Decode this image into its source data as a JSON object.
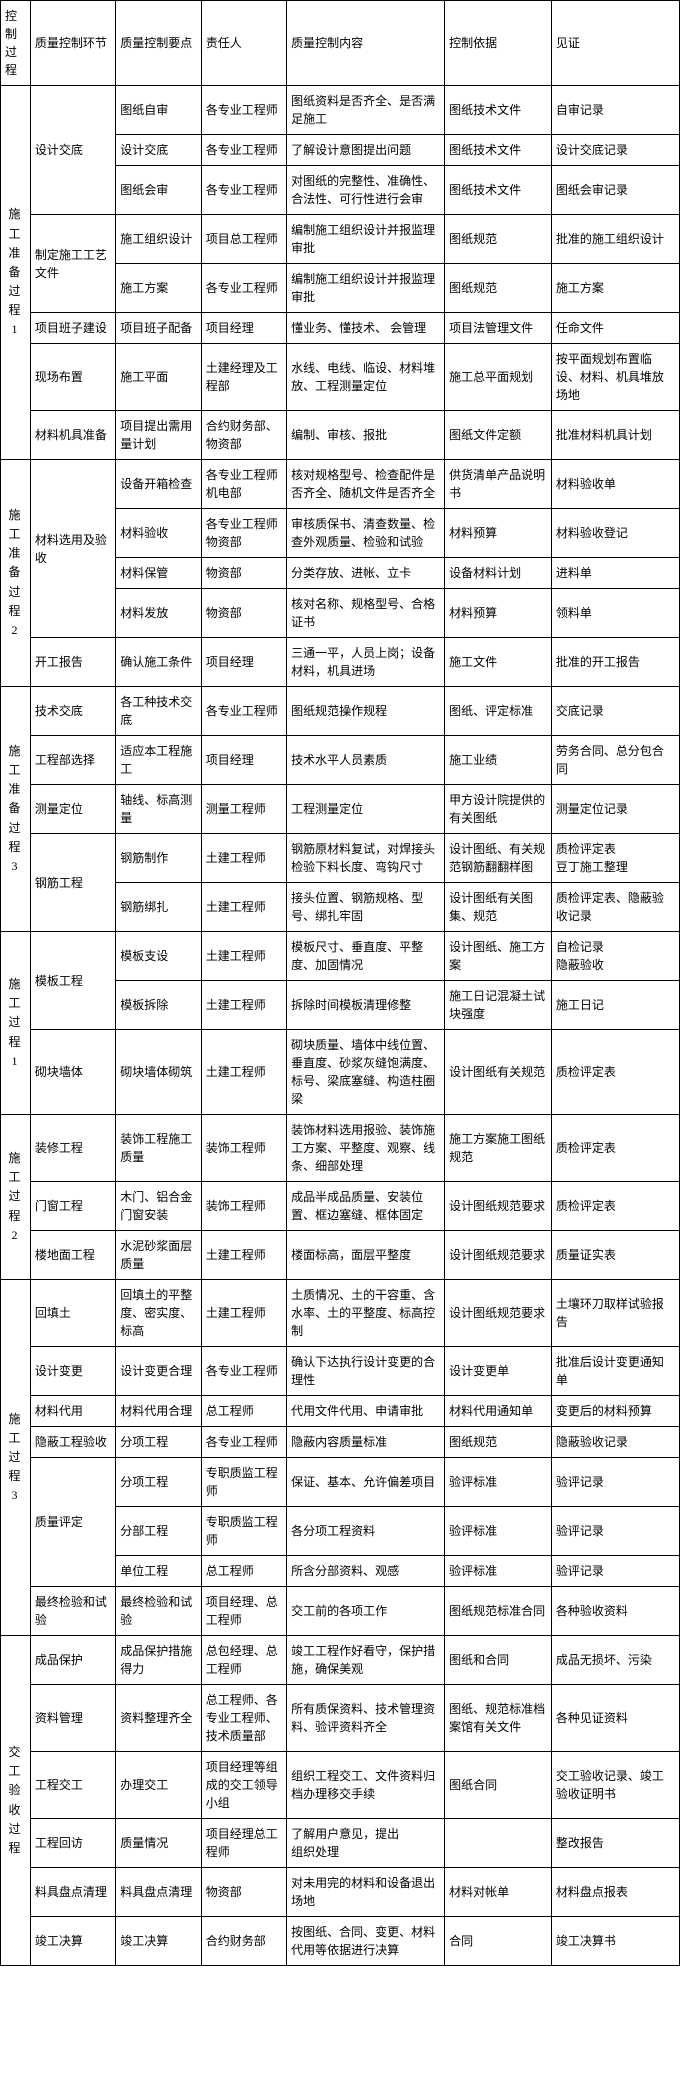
{
  "headers": [
    "控制过程",
    "质量控制环节",
    "质量控制要点",
    "责任人",
    "质量控制内容",
    "控制依据",
    "见证"
  ],
  "phases": [
    {
      "name": "施工准备过程1",
      "groups": [
        {
          "link": "设计交底",
          "rows": [
            {
              "point": "图纸自审",
              "resp": "各专业工程师",
              "content": "图纸资料是否齐全、是否满足施工",
              "basis": "图纸技术文件",
              "evidence": "自审记录"
            },
            {
              "point": "设计交底",
              "resp": "各专业工程师",
              "content": "了解设计意图提出问题",
              "basis": "图纸技术文件",
              "evidence": "设计交底记录"
            },
            {
              "point": "图纸会审",
              "resp": "各专业工程师",
              "content": "对图纸的完整性、准确性、合法性、可行性进行会审",
              "basis": "图纸技术文件",
              "evidence": "图纸会审记录"
            }
          ]
        },
        {
          "link": "制定施工工艺文件",
          "rows": [
            {
              "point": "施工组织设计",
              "resp": "项目总工程师",
              "content": "编制施工组织设计并报监理审批",
              "basis": "图纸规范",
              "evidence": "批准的施工组织设计"
            },
            {
              "point": "施工方案",
              "resp": "各专业工程师",
              "content": "编制施工组织设计并报监理审批",
              "basis": "图纸规范",
              "evidence": "施工方案"
            }
          ]
        },
        {
          "link": "项目班子建设",
          "rows": [
            {
              "point": "项目班子配备",
              "resp": "项目经理",
              "content": "懂业务、懂技术、 会管理",
              "basis": "项目法管理文件",
              "evidence": "任命文件"
            }
          ]
        },
        {
          "link": "现场布置",
          "rows": [
            {
              "point": "施工平面",
              "resp": "土建经理及工程部",
              "content": "水线、电线、临设、材料堆放、工程测量定位",
              "basis": "施工总平面规划",
              "evidence": "按平面规划布置临设、材料、机具堆放场地"
            }
          ]
        },
        {
          "link": "材料机具准备",
          "rows": [
            {
              "point": "项目提出需用量计划",
              "resp": "合约财务部、物资部",
              "content": "编制、审核、报批",
              "basis": "图纸文件定额",
              "evidence": "批准材料机具计划"
            }
          ]
        }
      ]
    },
    {
      "name": "施工准备过程2",
      "groups": [
        {
          "link": "材料选用及验收",
          "rows": [
            {
              "point": "设备开箱检查",
              "resp": "各专业工程师机电部",
              "content": "核对规格型号、检查配件是否齐全、随机文件是否齐全",
              "basis": "供货清单产品说明书",
              "evidence": "材料验收单"
            },
            {
              "point": "材料验收",
              "resp": "各专业工程师物资部",
              "content": "审核质保书、清查数量、检查外观质量、检验和试验",
              "basis": "材料预算",
              "evidence": "材料验收登记"
            },
            {
              "point": "材料保管",
              "resp": "物资部",
              "content": "分类存放、进帐、立卡",
              "basis": "设备材料计划",
              "evidence": "进料单"
            },
            {
              "point": "材料发放",
              "resp": "物资部",
              "content": "核对名称、规格型号、合格证书",
              "basis": "材料预算",
              "evidence": "领料单"
            }
          ]
        },
        {
          "link": "开工报告",
          "rows": [
            {
              "point": "确认施工条件",
              "resp": "项目经理",
              "content": "三通一平，人员上岗；设备材料，机具进场",
              "basis": "施工文件",
              "evidence": "批准的开工报告"
            }
          ]
        }
      ]
    },
    {
      "name": "施工准备过程3",
      "groups": [
        {
          "link": "技术交底",
          "rows": [
            {
              "point": "各工种技术交底",
              "resp": "各专业工程师",
              "content": "图纸规范操作规程",
              "basis": "图纸、评定标准",
              "evidence": "交底记录"
            }
          ]
        },
        {
          "link": "工程部选择",
          "rows": [
            {
              "point": "适应本工程施工",
              "resp": "项目经理",
              "content": "技术水平人员素质",
              "basis": "施工业绩",
              "evidence": "劳务合同、总分包合同"
            }
          ]
        },
        {
          "link": "测量定位",
          "rows": [
            {
              "point": "轴线、标高测量",
              "resp": "测量工程师",
              "content": "工程测量定位",
              "basis": "甲方设计院提供的有关图纸",
              "evidence": "测量定位记录"
            }
          ]
        },
        {
          "link": "钢筋工程",
          "rows": [
            {
              "point": "钢筋制作",
              "resp": "土建工程师",
              "content": "钢筋原材料复试，对焊接头检验下料长度、弯钩尺寸",
              "basis": "设计图纸、有关规范钢筋翻翻样图",
              "evidence": "质检评定表 \n豆丁施工整理"
            },
            {
              "point": "钢筋绑扎",
              "resp": "土建工程师",
              "content": "接头位置、钢筋规格、型号、绑扎牢固",
              "basis": "设计图纸有关图集、规范",
              "evidence": "质检评定表、隐蔽验收记录"
            }
          ]
        }
      ]
    },
    {
      "name": "施工过程1",
      "groups": [
        {
          "link": "模板工程",
          "rows": [
            {
              "point": "模板支设",
              "resp": "土建工程师",
              "content": "模板尺寸、垂直度、平整度、加固情况",
              "basis": "设计图纸、施工方案",
              "evidence": "自检记录 \n隐蔽验收"
            },
            {
              "point": "模板拆除",
              "resp": "土建工程师",
              "content": "拆除时间模板清理修整",
              "basis": "施工日记混凝土试块强度",
              "evidence": "施工日记"
            }
          ]
        },
        {
          "link": "砌块墙体",
          "rows": [
            {
              "point": "砌块墙体砌筑",
              "resp": "土建工程师",
              "content": "砌块质量、墙体中线位置、垂直度、砂浆灰缝饱满度、标号、梁底塞缝、构造柱圈梁",
              "basis": "设计图纸有关规范",
              "evidence": "质检评定表"
            }
          ]
        }
      ]
    },
    {
      "name": "施工过程2",
      "groups": [
        {
          "link": "装修工程",
          "rows": [
            {
              "point": "装饰工程施工质量",
              "resp": "装饰工程师",
              "content": "装饰材料选用报验、装饰施工方案、平整度、观察、线条、细部处理",
              "basis": "施工方案施工图纸规范",
              "evidence": "质检评定表"
            }
          ]
        },
        {
          "link": "门窗工程",
          "rows": [
            {
              "point": "木门、铝合金门窗安装",
              "resp": "装饰工程师",
              "content": "成品半成品质量、安装位置、框边塞缝、框体固定",
              "basis": "设计图纸规范要求",
              "evidence": "质检评定表"
            }
          ]
        },
        {
          "link": "楼地面工程",
          "rows": [
            {
              "point": "水泥砂浆面层质量",
              "resp": "土建工程师",
              "content": "楼面标高，面层平整度",
              "basis": "设计图纸规范要求",
              "evidence": "质量证实表"
            }
          ]
        }
      ]
    },
    {
      "name": "施工过程3",
      "groups": [
        {
          "link": "回填土",
          "rows": [
            {
              "point": "回填土的平整度、密实度、标高",
              "resp": "土建工程师",
              "content": "土质情况、土的干容重、含水率、土的平整度、标高控制",
              "basis": "设计图纸规范要求",
              "evidence": "土壤环刀取样试验报告"
            }
          ]
        },
        {
          "link": "设计变更",
          "rows": [
            {
              "point": "设计变更合理",
              "resp": "各专业工程师",
              "content": "确认下达执行设计变更的合理性",
              "basis": "设计变更单",
              "evidence": "批准后设计变更通知单"
            }
          ]
        },
        {
          "link": "材料代用",
          "rows": [
            {
              "point": "材料代用合理",
              "resp": "总工程师",
              "content": "代用文件代用、申请审批",
              "basis": "材料代用通知单",
              "evidence": "变更后的材料预算"
            }
          ]
        },
        {
          "link": "隐蔽工程验收",
          "rows": [
            {
              "point": "分项工程",
              "resp": "各专业工程师",
              "content": "隐蔽内容质量标准",
              "basis": "图纸规范",
              "evidence": "隐蔽验收记录"
            }
          ]
        },
        {
          "link": "质量评定",
          "rows": [
            {
              "point": "分项工程",
              "resp": "专职质监工程师",
              "content": "保证、基本、允许偏差项目",
              "basis": "验评标准",
              "evidence": "验评记录"
            },
            {
              "point": "分部工程",
              "resp": "专职质监工程师",
              "content": "各分项工程资料",
              "basis": "验评标准",
              "evidence": "验评记录"
            },
            {
              "point": "单位工程",
              "resp": "总工程师",
              "content": "所含分部资料、观感",
              "basis": "验评标准",
              "evidence": "验评记录"
            }
          ]
        },
        {
          "link": "最终检验和试验",
          "rows": [
            {
              "point": "最终检验和试验",
              "resp": "项目经理、总工程师",
              "content": "交工前的各项工作",
              "basis": "图纸规范标准合同",
              "evidence": "各种验收资料"
            }
          ]
        }
      ]
    },
    {
      "name": "交工验收过程",
      "groups": [
        {
          "link": "成品保护",
          "rows": [
            {
              "point": "成品保护措施得力",
              "resp": "总包经理、总工程师",
              "content": "竣工工程作好看守，保护措施，确保美观",
              "basis": "图纸和合同",
              "evidence": "成品无损坏、污染"
            }
          ]
        },
        {
          "link": "资料管理",
          "rows": [
            {
              "point": "资料整理齐全",
              "resp": "总工程师、各专业工程师、技术质量部",
              "content": "所有质保资料、技术管理资料、验评资料齐全",
              "basis": "图纸、规范标准档案馆有关文件",
              "evidence": "各种见证资料"
            }
          ]
        },
        {
          "link": "工程交工",
          "rows": [
            {
              "point": "办理交工",
              "resp": "项目经理等组成的交工领导小组",
              "content": "组织工程交工、文件资料归档办理移交手续",
              "basis": "图纸合同",
              "evidence": "交工验收记录、竣工验收证明书"
            }
          ]
        },
        {
          "link": "工程回访",
          "rows": [
            {
              "point": "质量情况",
              "resp": "项目经理总工程师",
              "content": "了解用户意见，提出 \n组织处理",
              "basis": "",
              "evidence": "整改报告"
            }
          ]
        },
        {
          "link": "料具盘点清理",
          "rows": [
            {
              "point": "料具盘点清理",
              "resp": "物资部",
              "content": "对未用完的材料和设备退出场地",
              "basis": "材料对帐单",
              "evidence": "材料盘点报表"
            }
          ]
        },
        {
          "link": "竣工决算",
          "rows": [
            {
              "point": "竣工决算",
              "resp": "合约财务部",
              "content": "按图纸、合同、变更、材料代用等依据进行决算",
              "basis": "合同",
              "evidence": "竣工决算书"
            }
          ]
        }
      ]
    }
  ]
}
